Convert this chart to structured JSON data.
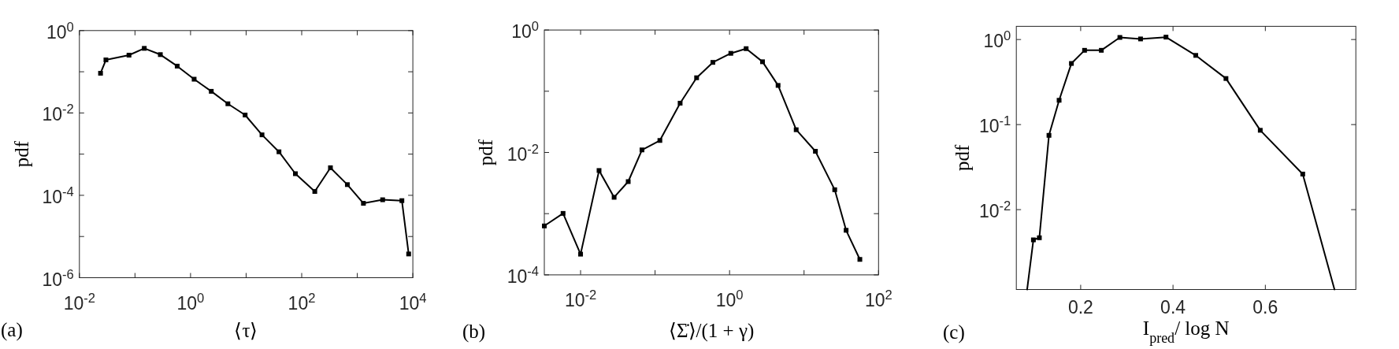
{
  "chart_data": [
    {
      "type": "line",
      "xlabel": "⟨τ⟩",
      "ylabel": "pdf",
      "annotations": [
        "(a)"
      ],
      "log": "xy",
      "marker": "square",
      "line_style": "solid",
      "xlim": [
        0.01,
        10000
      ],
      "ylim": [
        1e-06,
        1
      ],
      "xticks": [
        {
          "value": 0.01,
          "label": "10$^{-2}$"
        },
        {
          "value": 0.1,
          "label": null
        },
        {
          "value": 1,
          "label": "10$^{0}$"
        },
        {
          "value": 10,
          "label": null
        },
        {
          "value": 100,
          "label": "10$^{2}$"
        },
        {
          "value": 1000,
          "label": null
        },
        {
          "value": 10000,
          "label": "10$^{4}$"
        }
      ],
      "yticks": [
        {
          "value": 1e-06,
          "label": "10$^{-6}$"
        },
        {
          "value": 1e-05,
          "label": null
        },
        {
          "value": 0.0001,
          "label": "10$^{-4}$"
        },
        {
          "value": 0.001,
          "label": null
        },
        {
          "value": 0.01,
          "label": "10$^{-2}$"
        },
        {
          "value": 0.1,
          "label": null
        },
        {
          "value": 1,
          "label": "10$^{0}$"
        }
      ],
      "x": [
        0.024,
        0.03,
        0.078,
        0.147,
        0.286,
        0.575,
        1.16,
        2.36,
        4.7,
        9.6,
        19.3,
        39,
        77,
        172,
        329,
        663,
        1290,
        2860,
        6350,
        8410
      ],
      "series": [
        {
          "color": "#000000",
          "values": [
            0.092,
            0.194,
            0.253,
            0.37,
            0.261,
            0.137,
            0.066,
            0.0335,
            0.0167,
            0.0089,
            0.00294,
            0.00114,
            0.000335,
            0.000124,
            0.000467,
            0.000182,
            6.4e-05,
            7.8e-05,
            7.43e-05,
            3.77e-06
          ]
        }
      ]
    },
    {
      "type": "line",
      "xlabel": "⟨Σ̇⟩/(1 + γ)",
      "ylabel": "pdf",
      "annotations": [
        "(b)"
      ],
      "log": "xy",
      "marker": "square",
      "line_style": "solid",
      "xlim": [
        0.00326,
        100
      ],
      "ylim": [
        0.0001,
        1
      ],
      "xticks": [
        {
          "value": 0.01,
          "label": "10$^{-2}$"
        },
        {
          "value": 0.1,
          "label": null
        },
        {
          "value": 1,
          "label": "10$^{0}$"
        },
        {
          "value": 10,
          "label": null
        },
        {
          "value": 100,
          "label": "10$^{2}$"
        }
      ],
      "yticks": [
        {
          "value": 0.0001,
          "label": "10$^{-4}$"
        },
        {
          "value": 0.001,
          "label": null
        },
        {
          "value": 0.01,
          "label": "10$^{-2}$"
        },
        {
          "value": 0.1,
          "label": null
        },
        {
          "value": 1,
          "label": "10$^{0}$"
        }
      ],
      "x": [
        0.00326,
        0.00582,
        0.01,
        0.0177,
        0.0282,
        0.0436,
        0.0667,
        0.116,
        0.217,
        0.361,
        0.597,
        1.04,
        1.67,
        2.77,
        4.48,
        7.84,
        14.2,
        25.8,
        36.7,
        56.1
      ],
      "series": [
        {
          "color": "#000000",
          "values": [
            0.00063,
            0.00101,
            0.000218,
            0.00507,
            0.00185,
            0.00334,
            0.011,
            0.0157,
            0.0638,
            0.166,
            0.296,
            0.416,
            0.496,
            0.303,
            0.1245,
            0.0235,
            0.01045,
            0.00246,
            0.000535,
            0.000179
          ]
        }
      ]
    },
    {
      "type": "line",
      "xlabel": "I$_{pred}$/ log N",
      "ylabel": "pdf",
      "annotations": [
        "(c)"
      ],
      "log": "y",
      "marker": "square",
      "line_style": "solid",
      "xlim": [
        0.0606,
        0.796
      ],
      "ylim": [
        0.00115,
        1.43
      ],
      "xticks": [
        0.2,
        0.4,
        0.6
      ],
      "yticks": [
        {
          "value": 0.01,
          "label": "10$^{-2}$"
        },
        {
          "value": 0.1,
          "label": "10$^{-1}$"
        },
        {
          "value": 1,
          "label": "10$^{0}$"
        }
      ],
      "x": [
        0.0976,
        0.1105,
        0.1313,
        0.1533,
        0.1799,
        0.2084,
        0.2447,
        0.2849,
        0.3297,
        0.3848,
        0.4493,
        0.5147,
        0.589,
        0.681
      ],
      "series": [
        {
          "color": "#000000",
          "values": [
            0.00441,
            0.00467,
            0.0747,
            0.193,
            0.523,
            0.747,
            0.747,
            1.058,
            1.016,
            1.067,
            0.651,
            0.348,
            0.0857,
            0.0262
          ]
        },
        {
          "type": "line",
          "marker": "none",
          "color": "#000000",
          "x": [
            0.084,
            0.0976
          ],
          "values": [
            0.00115,
            0.00441
          ]
        },
        {
          "type": "line",
          "marker": "none",
          "color": "#000000",
          "x": [
            0.681,
            0.7498
          ],
          "values": [
            0.0262,
            0.00115
          ]
        }
      ]
    }
  ]
}
